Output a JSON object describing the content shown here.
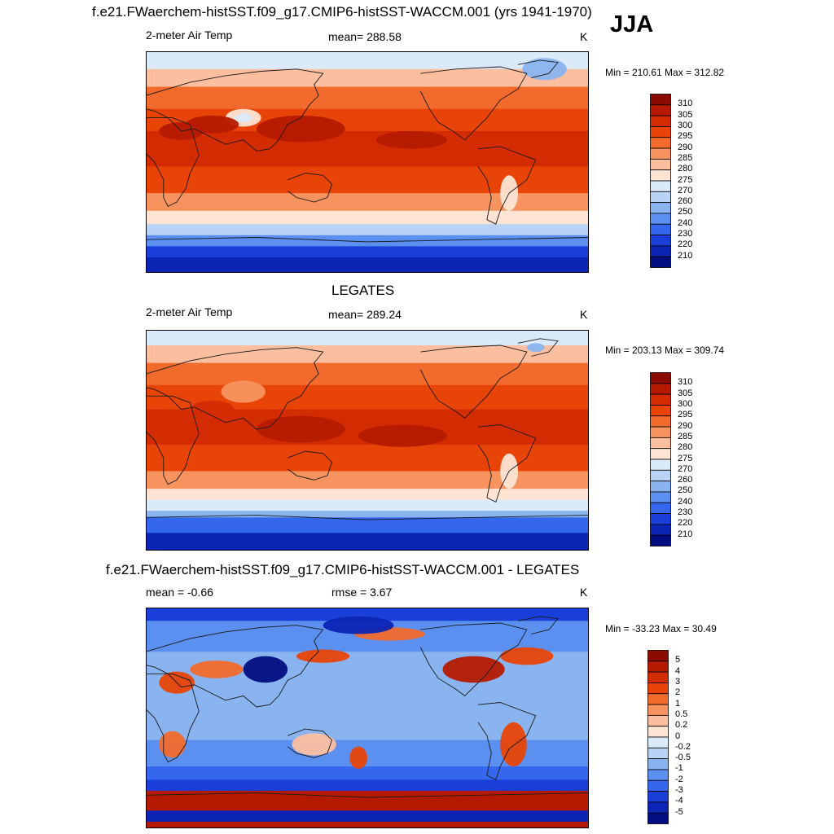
{
  "header": {
    "case_title": "f.e21.FWaerchem-histSST.f09_g17.CMIP6-histSST-WACCM.001 (yrs 1941-1970)",
    "season": "JJA"
  },
  "panels": [
    {
      "id": "model",
      "title": "",
      "left_label": "2-meter Air Temp",
      "center_label": "mean= 288.58",
      "unit": "K",
      "minmax": "Min = 210.61 Max = 312.82"
    },
    {
      "id": "obs",
      "title": "LEGATES",
      "left_label": "2-meter Air Temp",
      "center_label": "mean= 289.24",
      "unit": "K",
      "minmax": "Min = 203.13 Max = 309.74"
    },
    {
      "id": "diff",
      "title": "f.e21.FWaerchem-histSST.f09_g17.CMIP6-histSST-WACCM.001 - LEGATES",
      "left_label": "mean =  -0.66",
      "center_label": "rmse =   3.67",
      "unit": "K",
      "minmax": "Min = -33.23 Max =  30.49"
    }
  ],
  "colorbars": {
    "abs": {
      "labels": [
        "310",
        "305",
        "300",
        "295",
        "290",
        "285",
        "280",
        "275",
        "270",
        "260",
        "250",
        "240",
        "230",
        "220",
        "210"
      ],
      "colors": [
        "#8a0c00",
        "#b51a00",
        "#d42c02",
        "#e84407",
        "#f26a2c",
        "#f7935f",
        "#fbbfa0",
        "#fde4d3",
        "#dbeaf8",
        "#b8d3f5",
        "#8ab4f0",
        "#5b8ff0",
        "#3566ee",
        "#1a3fd9",
        "#0c24b4",
        "#020e80"
      ]
    },
    "diff": {
      "labels": [
        "5",
        "4",
        "3",
        "2",
        "1",
        "0.5",
        "0.2",
        "0",
        "-0.2",
        "-0.5",
        "-1",
        "-2",
        "-3",
        "-4",
        "-5"
      ],
      "colors": [
        "#8a0c00",
        "#b51a00",
        "#d42c02",
        "#e84407",
        "#f26a2c",
        "#f7935f",
        "#fbbfa0",
        "#fde4d3",
        "#dbeaf8",
        "#b8d3f5",
        "#8ab4f0",
        "#5b8ff0",
        "#3566ee",
        "#1a3fd9",
        "#0c24b4",
        "#020e80"
      ]
    }
  },
  "chart_data": [
    {
      "type": "heatmap",
      "title": "2-meter Air Temp",
      "units": "K",
      "mean": 288.58,
      "min": 210.61,
      "max": 312.82,
      "levels": [
        210,
        220,
        230,
        240,
        250,
        260,
        270,
        275,
        280,
        285,
        290,
        295,
        300,
        305,
        310
      ],
      "lat_bands_approx": [
        {
          "lat": "80N-90N",
          "value": 272
        },
        {
          "lat": "60N-80N",
          "value": 283
        },
        {
          "lat": "30N-60N",
          "value": 295
        },
        {
          "lat": "0-30N",
          "value": 300
        },
        {
          "lat": "0-30S",
          "value": 296
        },
        {
          "lat": "30S-50S",
          "value": 285
        },
        {
          "lat": "50S-65S",
          "value": 272
        },
        {
          "lat": "65S-90S",
          "value": 220
        }
      ]
    },
    {
      "type": "heatmap",
      "title": "2-meter Air Temp",
      "units": "K",
      "mean": 289.24,
      "min": 203.13,
      "max": 309.74,
      "levels": [
        210,
        220,
        230,
        240,
        250,
        260,
        270,
        275,
        280,
        285,
        290,
        295,
        300,
        305,
        310
      ],
      "lat_bands_approx": [
        {
          "lat": "80N-90N",
          "value": 276
        },
        {
          "lat": "60N-80N",
          "value": 284
        },
        {
          "lat": "30N-60N",
          "value": 295
        },
        {
          "lat": "0-30N",
          "value": 301
        },
        {
          "lat": "0-30S",
          "value": 297
        },
        {
          "lat": "30S-50S",
          "value": 285
        },
        {
          "lat": "50S-65S",
          "value": 270
        },
        {
          "lat": "65S-90S",
          "value": 225
        }
      ]
    },
    {
      "type": "heatmap",
      "units": "K",
      "mean": -0.66,
      "rmse": 3.67,
      "min": -33.23,
      "max": 30.49,
      "levels": [
        -5,
        -4,
        -3,
        -2,
        -1,
        -0.5,
        -0.2,
        0,
        0.2,
        0.5,
        1,
        2,
        3,
        4,
        5
      ],
      "lat_bands_approx": [
        {
          "lat": "60N-90N",
          "value": -2
        },
        {
          "lat": "30N-60N",
          "value": 0.5
        },
        {
          "lat": "0-30N",
          "value": -1
        },
        {
          "lat": "0-30S",
          "value": -1
        },
        {
          "lat": "30S-60S",
          "value": -1
        },
        {
          "lat": "60S-70S",
          "value": -3
        },
        {
          "lat": "70S-80S",
          "value": 5
        },
        {
          "lat": "80S-90S",
          "value": -4
        }
      ]
    }
  ]
}
